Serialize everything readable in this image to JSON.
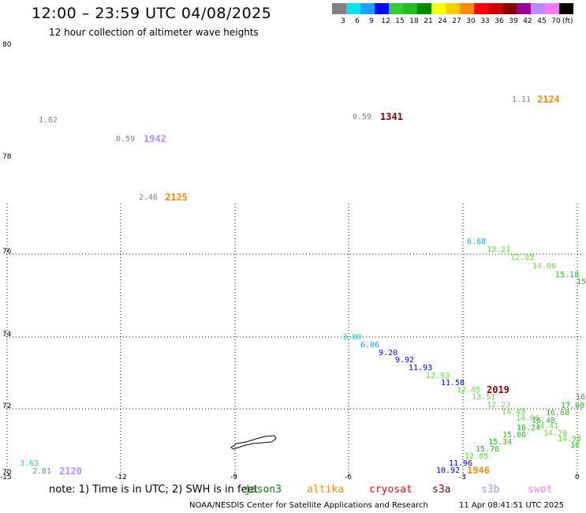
{
  "title": "12:00 – 23:59 UTC 04/08/2025",
  "subtitle": "12 hour collection of altimeter wave heights",
  "legend": {
    "unit": "(ft)",
    "items": [
      {
        "label": "3",
        "color": "#808080"
      },
      {
        "label": "6",
        "color": "#00e5ee"
      },
      {
        "label": "9",
        "color": "#1ca0ff"
      },
      {
        "label": "12",
        "color": "#0000ff"
      },
      {
        "label": "15",
        "color": "#33cc33"
      },
      {
        "label": "18",
        "color": "#22bb22"
      },
      {
        "label": "21",
        "color": "#008800"
      },
      {
        "label": "24",
        "color": "#ffff00"
      },
      {
        "label": "27",
        "color": "#ffcc00"
      },
      {
        "label": "30",
        "color": "#ff8c00"
      },
      {
        "label": "33",
        "color": "#ff0000"
      },
      {
        "label": "36",
        "color": "#cc0000"
      },
      {
        "label": "39",
        "color": "#880000"
      },
      {
        "label": "42",
        "color": "#990099"
      },
      {
        "label": "45",
        "color": "#b88cff"
      },
      {
        "label": "70",
        "color": "#ff77ff"
      },
      {
        "label": "",
        "color": "#000000"
      }
    ]
  },
  "map": {
    "lat_labels": [
      "80",
      "78",
      "76",
      "74",
      "72",
      "70"
    ],
    "lon_labels": [
      "-15",
      "-12",
      "-9",
      "-6",
      "-3",
      "0"
    ]
  },
  "observations": [
    {
      "swh": "1.62",
      "color": "#808080"
    },
    {
      "swh": "0.59",
      "color": "#808080",
      "time": "1942",
      "time_color": "#b88cff"
    },
    {
      "swh": "2.46",
      "color": "#808080",
      "time": "2125",
      "time_color": "#ff8c00"
    },
    {
      "swh": "0.59",
      "color": "#808080",
      "time": "1341",
      "time_color": "#880000"
    },
    {
      "swh": "1.11",
      "color": "#808080",
      "time": "2124",
      "time_color": "#ff8c00"
    },
    {
      "swh": "6.68",
      "color": "#1ca0ff"
    },
    {
      "swh": "13.21",
      "color": "#66dd44"
    },
    {
      "swh": "12.95",
      "color": "#66dd44"
    },
    {
      "swh": "14.00",
      "color": "#66dd44"
    },
    {
      "swh": "15.18",
      "color": "#22bb22"
    },
    {
      "swh": "15",
      "color": "#22bb22"
    },
    {
      "swh": "3.80",
      "color": "#00e5ee"
    },
    {
      "swh": "6.06",
      "color": "#1ca0ff"
    },
    {
      "swh": "9.20",
      "color": "#0000ff"
    },
    {
      "swh": "9.92",
      "color": "#0000ff"
    },
    {
      "swh": "11.93",
      "color": "#0000ff"
    },
    {
      "swh": "12.93",
      "color": "#66dd44"
    },
    {
      "swh": "11.58",
      "color": "#0000ff"
    },
    {
      "swh": "12.45",
      "color": "#66dd44",
      "time": "2019",
      "time_color": "#880000"
    },
    {
      "swh": "13.51",
      "color": "#66dd44"
    },
    {
      "swh": "12.23",
      "color": "#66dd44"
    },
    {
      "swh": "14.49",
      "color": "#66dd44"
    },
    {
      "swh": "14.06",
      "color": "#66dd44"
    },
    {
      "swh": "16.48",
      "color": "#22bb22"
    },
    {
      "swh": "16.68",
      "color": "#22bb22"
    },
    {
      "swh": "17.00",
      "color": "#22bb22"
    },
    {
      "swh": "16",
      "color": "#22bb22"
    },
    {
      "swh": "16.24",
      "color": "#22bb22"
    },
    {
      "swh": "14.41",
      "color": "#66dd44"
    },
    {
      "swh": "15.06",
      "color": "#22bb22"
    },
    {
      "swh": "14.70",
      "color": "#66dd44"
    },
    {
      "swh": "15.34",
      "color": "#22bb22"
    },
    {
      "swh": "14.98",
      "color": "#66dd44"
    },
    {
      "swh": "15.78",
      "color": "#22bb22"
    },
    {
      "swh": "16",
      "color": "#22bb22"
    },
    {
      "swh": "12.85",
      "color": "#66dd44"
    },
    {
      "swh": "11.96",
      "color": "#0000ff"
    },
    {
      "swh": "10.92",
      "color": "#0000ff",
      "time": "1946",
      "time_color": "#ff8c00"
    },
    {
      "swh": "3.63",
      "color": "#00e5ee"
    },
    {
      "swh": "2.81",
      "color": "#808080",
      "time": "2120",
      "time_color": "#b88cff"
    }
  ],
  "note": "note:  1) Time is in UTC; 2) SWH is in feet",
  "satellites": [
    {
      "name": "jason3",
      "color": "#008800"
    },
    {
      "name": "altika",
      "color": "#ff8c00"
    },
    {
      "name": "cryosat",
      "color": "#ff0000"
    },
    {
      "name": "s3a",
      "color": "#880000"
    },
    {
      "name": "s3b",
      "color": "#b88cff"
    },
    {
      "name": "swot",
      "color": "#ff77ff"
    }
  ],
  "footer": {
    "org": "NOAA/NESDIS Center for Satellite Applications and Research",
    "date": "11 Apr 08:41:51 UTC 2025"
  }
}
